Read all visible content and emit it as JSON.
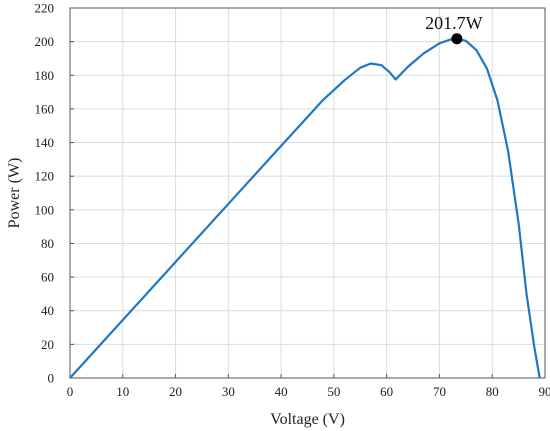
{
  "chart_data": {
    "type": "line",
    "title": "",
    "xlabel": "Voltage (V)",
    "ylabel": "Power (W)",
    "xlim": [
      0,
      90
    ],
    "ylim": [
      0,
      220
    ],
    "xticks": [
      0,
      10,
      20,
      30,
      40,
      50,
      60,
      70,
      80,
      90
    ],
    "yticks": [
      0,
      20,
      40,
      60,
      80,
      100,
      120,
      140,
      160,
      180,
      200,
      220
    ],
    "grid": true,
    "legend": "none",
    "line_color": "#1f77c4",
    "series": [
      {
        "x": [
          0,
          10,
          20,
          30,
          40,
          48,
          52,
          55,
          57,
          59,
          60.5,
          61.7,
          64,
          67,
          70,
          72,
          73.3,
          75,
          77,
          79,
          81,
          83,
          85,
          86.5,
          88,
          89
        ],
        "y": [
          0,
          34.5,
          69,
          103.5,
          138,
          165.5,
          177,
          184.5,
          187,
          186,
          182,
          177.5,
          185,
          193,
          199,
          201.2,
          201.7,
          200.5,
          195,
          184,
          165,
          135,
          92,
          50,
          18,
          0
        ]
      }
    ],
    "annotations": [
      {
        "text": "201.7W",
        "x": 73.3,
        "y": 201.7
      }
    ]
  }
}
